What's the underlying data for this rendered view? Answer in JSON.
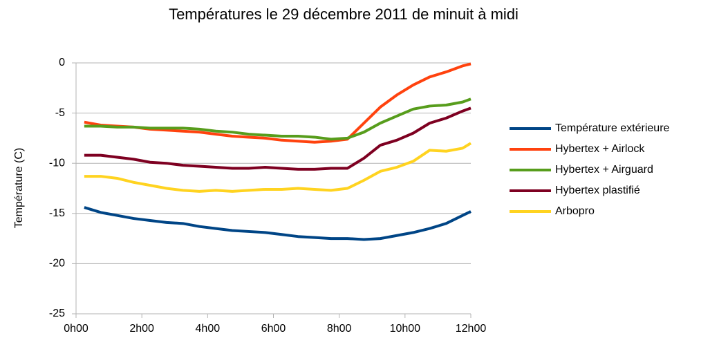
{
  "chart_data": {
    "type": "line",
    "title": "Températures le 29 décembre 2011 de minuit à midi",
    "y_label": "Température (C)",
    "x": [
      0.25,
      0.75,
      1.25,
      1.75,
      2.25,
      2.75,
      3.25,
      3.75,
      4.25,
      4.75,
      5.25,
      5.75,
      6.25,
      6.75,
      7.25,
      7.75,
      8.25,
      8.75,
      9.25,
      9.75,
      10.25,
      10.75,
      11.25,
      11.75,
      12
    ],
    "xlim": [
      0,
      12
    ],
    "xticks": [
      {
        "value": 0,
        "label": "0h00"
      },
      {
        "value": 2,
        "label": "2h00"
      },
      {
        "value": 4,
        "label": "4h00"
      },
      {
        "value": 6,
        "label": "6h00"
      },
      {
        "value": 8,
        "label": "8h00"
      },
      {
        "value": 10,
        "label": "10h00"
      },
      {
        "value": 12,
        "label": "12h00"
      }
    ],
    "ylim": [
      -25,
      0
    ],
    "yticks": [
      -25,
      -20,
      -15,
      -10,
      -5,
      0
    ],
    "grid": true,
    "legend": "right",
    "series": [
      {
        "name": "Température extérieure",
        "color": "#004586",
        "values": [
          -14.4,
          -14.9,
          -15.2,
          -15.5,
          -15.7,
          -15.9,
          -16.0,
          -16.3,
          -16.5,
          -16.7,
          -16.8,
          -16.9,
          -17.1,
          -17.3,
          -17.4,
          -17.5,
          -17.5,
          -17.6,
          -17.5,
          -17.2,
          -16.9,
          -16.5,
          -16.0,
          -15.2,
          -14.8
        ]
      },
      {
        "name": "Hybertex + Airlock",
        "color": "#ff420e",
        "values": [
          -5.9,
          -6.2,
          -6.3,
          -6.4,
          -6.6,
          -6.7,
          -6.8,
          -6.9,
          -7.1,
          -7.3,
          -7.4,
          -7.5,
          -7.7,
          -7.8,
          -7.9,
          -7.8,
          -7.6,
          -6.0,
          -4.4,
          -3.2,
          -2.2,
          -1.4,
          -0.9,
          -0.3,
          -0.1
        ]
      },
      {
        "name": "Hybertex + Airguard",
        "color": "#579d1c",
        "values": [
          -6.3,
          -6.3,
          -6.4,
          -6.4,
          -6.5,
          -6.5,
          -6.5,
          -6.6,
          -6.8,
          -6.9,
          -7.1,
          -7.2,
          -7.3,
          -7.3,
          -7.4,
          -7.6,
          -7.5,
          -6.9,
          -6.0,
          -5.3,
          -4.6,
          -4.3,
          -4.2,
          -3.9,
          -3.6
        ]
      },
      {
        "name": "Hybertex plastifié",
        "color": "#7e0021",
        "values": [
          -9.2,
          -9.2,
          -9.4,
          -9.6,
          -9.9,
          -10.0,
          -10.2,
          -10.3,
          -10.4,
          -10.5,
          -10.5,
          -10.4,
          -10.5,
          -10.6,
          -10.6,
          -10.5,
          -10.5,
          -9.5,
          -8.2,
          -7.7,
          -7.0,
          -6.0,
          -5.5,
          -4.8,
          -4.5
        ]
      },
      {
        "name": "Arbopro",
        "color": "#ffd320",
        "values": [
          -11.3,
          -11.3,
          -11.5,
          -11.9,
          -12.2,
          -12.5,
          -12.7,
          -12.8,
          -12.7,
          -12.8,
          -12.7,
          -12.6,
          -12.6,
          -12.5,
          -12.6,
          -12.7,
          -12.5,
          -11.7,
          -10.8,
          -10.4,
          -9.8,
          -8.7,
          -8.8,
          -8.5,
          -8.0
        ]
      }
    ]
  }
}
